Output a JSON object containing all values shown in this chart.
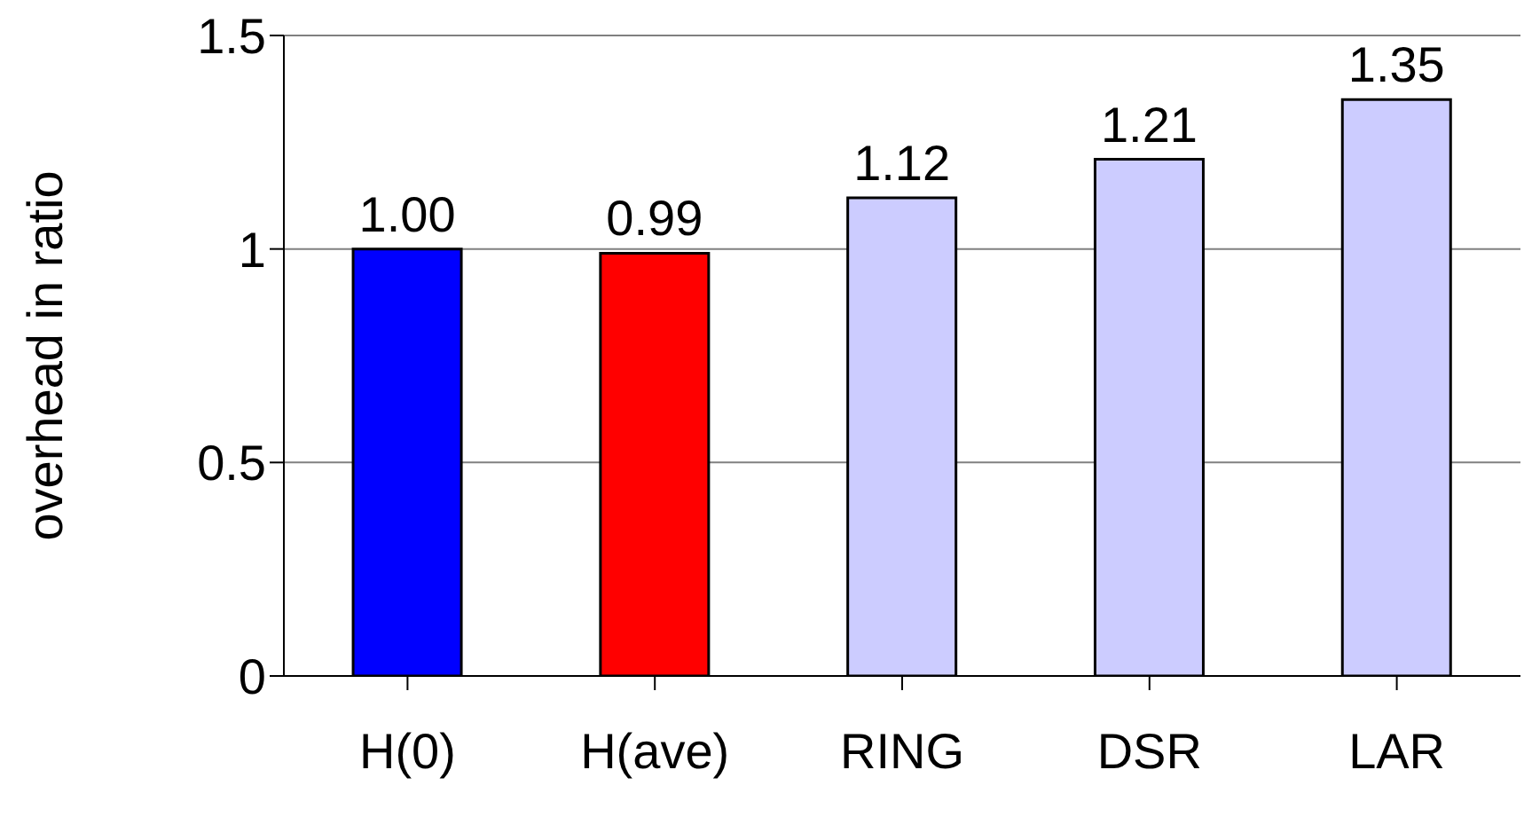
{
  "chart_data": {
    "type": "bar",
    "ylabel": "overhead in ratio",
    "categories": [
      "H(0)",
      "H(ave)",
      "RING",
      "DSR",
      "LAR"
    ],
    "values": [
      1.0,
      0.99,
      1.12,
      1.21,
      1.35
    ],
    "colors": [
      "#0000ff",
      "#ff0000",
      "#ccccff",
      "#ccccff",
      "#ccccff"
    ],
    "value_labels": [
      "1.00",
      "0.99",
      "1.12",
      "1.21",
      "1.35"
    ],
    "ylim": [
      0,
      1.5
    ],
    "yticks": [
      0,
      0.5,
      1,
      1.5
    ],
    "grid": "y"
  }
}
